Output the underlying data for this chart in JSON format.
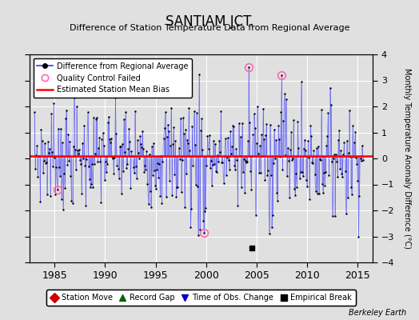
{
  "title": "SANTIAM JCT.",
  "subtitle": "Difference of Station Temperature Data from Regional Average",
  "ylabel": "Monthly Temperature Anomaly Difference (°C)",
  "xlabel_years": [
    1985,
    1990,
    1995,
    2000,
    2005,
    2010,
    2015
  ],
  "ylim": [
    -4,
    4
  ],
  "xlim_start": 1982.5,
  "xlim_end": 2016.5,
  "mean_bias": 0.08,
  "mean_bias_color": "#ff0000",
  "line_color": "#3333ff",
  "dot_color": "#000000",
  "qc_failed_color": "#ff69b4",
  "background_color": "#e0e0e0",
  "plot_bg_color": "#e0e0e0",
  "grid_color": "#ffffff",
  "watermark": "Berkeley Earth",
  "emp_break_year": 2004.5,
  "tobs_year": 1998.75,
  "qc_years": [
    1985.33,
    1999.75,
    2004.17,
    2007.42
  ],
  "qc_values": [
    -1.2,
    -2.85,
    3.5,
    3.2
  ],
  "start_year": 1983.0,
  "end_year": 2015.5,
  "seed": 7
}
